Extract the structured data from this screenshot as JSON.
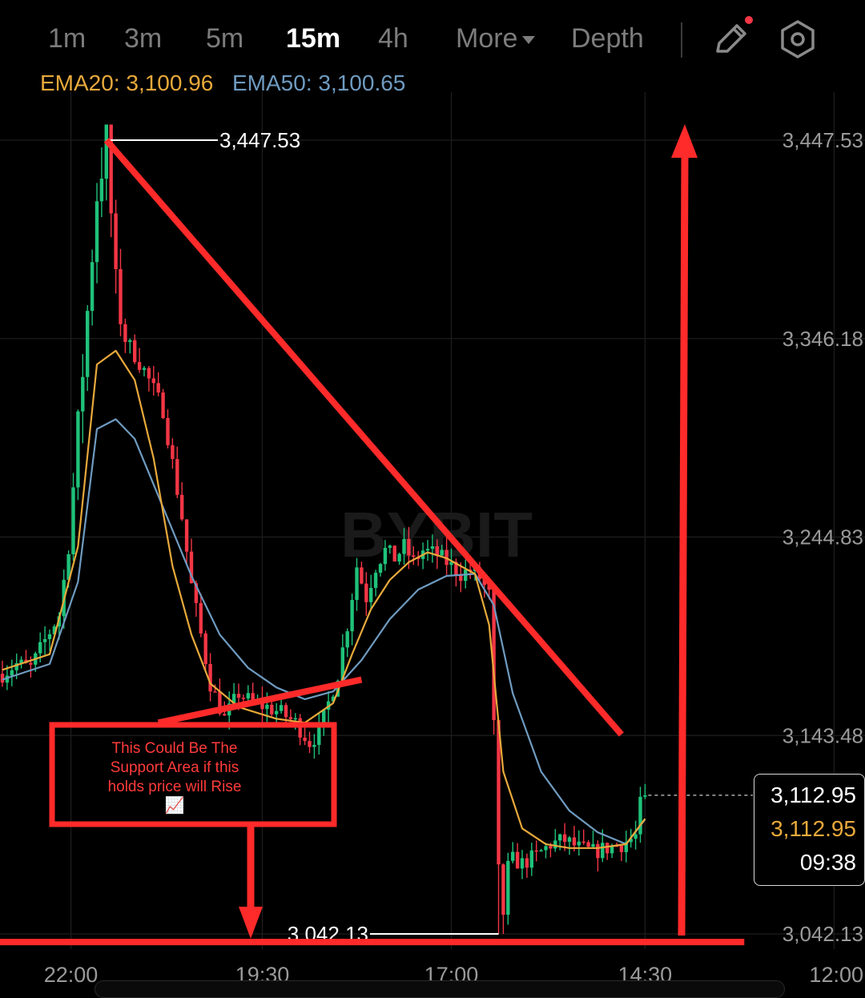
{
  "toolbar": {
    "timeframes": [
      "1m",
      "3m",
      "5m",
      "15m",
      "4h"
    ],
    "active": "15m",
    "more_label": "More",
    "depth_label": "Depth",
    "draw_icon": "pencil-icon",
    "settings_icon": "hexagon-settings-icon"
  },
  "indicators": {
    "ema20": "EMA20: 3,100.96",
    "ema50": "EMA50: 3,100.65",
    "ema20_color": "#e8a93b",
    "ema50_color": "#6f9bc0"
  },
  "watermark": "BYBIT",
  "price_box": {
    "last": "3,112.95",
    "mark": "3,112.95",
    "countdown": "09:38"
  },
  "annotation": {
    "line1": "This Could Be The",
    "line2": "Support Area if this",
    "line3": "holds price will Rise",
    "emoji": "📈"
  },
  "colors": {
    "up": "#1fc27a",
    "down": "#f23645",
    "annotation": "#ff2a2a",
    "background": "#000000"
  },
  "chart_data": {
    "type": "candlestick",
    "interval": "15m",
    "x_tick_labels": [
      "22:00",
      "19:30",
      "17:00",
      "14:30",
      "12:00"
    ],
    "y_tick_labels": [
      "3,447.53",
      "3,346.18",
      "3,244.83",
      "3,143.48",
      "3,042.13"
    ],
    "ylim": [
      3042.13,
      3447.53
    ],
    "high_marker": "3,447.53",
    "low_marker": "3,042.13",
    "high_value": 3447.53,
    "low_value": 3042.13,
    "last_price": 3112.95,
    "close_path": [
      [
        0,
        3175
      ],
      [
        3,
        3180
      ],
      [
        6,
        3178
      ],
      [
        9,
        3192
      ],
      [
        12,
        3205
      ],
      [
        14,
        3240
      ],
      [
        16,
        3300
      ],
      [
        18,
        3360
      ],
      [
        20,
        3420
      ],
      [
        22,
        3447.53
      ],
      [
        24,
        3372
      ],
      [
        26,
        3346
      ],
      [
        30,
        3330
      ],
      [
        34,
        3310
      ],
      [
        38,
        3255
      ],
      [
        40,
        3220
      ],
      [
        42,
        3195
      ],
      [
        44,
        3170
      ],
      [
        47,
        3152
      ],
      [
        50,
        3165
      ],
      [
        53,
        3160
      ],
      [
        56,
        3158
      ],
      [
        59,
        3155
      ],
      [
        62,
        3150
      ],
      [
        65,
        3140
      ],
      [
        67,
        3145
      ],
      [
        69,
        3160
      ],
      [
        71,
        3175
      ],
      [
        73,
        3200
      ],
      [
        75,
        3230
      ],
      [
        77,
        3214
      ],
      [
        79,
        3230
      ],
      [
        81,
        3238
      ],
      [
        83,
        3234
      ],
      [
        85,
        3240
      ],
      [
        87,
        3232
      ],
      [
        89,
        3238
      ],
      [
        92,
        3236
      ],
      [
        95,
        3230
      ],
      [
        97,
        3226
      ],
      [
        99,
        3228
      ],
      [
        101,
        3224
      ],
      [
        103,
        3215
      ],
      [
        104,
        3140
      ],
      [
        105,
        3065
      ],
      [
        106,
        3055
      ],
      [
        108,
        3080
      ],
      [
        110,
        3078
      ],
      [
        113,
        3082
      ],
      [
        116,
        3088
      ],
      [
        119,
        3090
      ],
      [
        122,
        3086
      ],
      [
        125,
        3084
      ],
      [
        128,
        3086
      ],
      [
        131,
        3088
      ],
      [
        134,
        3092
      ],
      [
        135,
        3108
      ],
      [
        136,
        3112.95
      ]
    ],
    "ema20_path": [
      [
        0,
        3177
      ],
      [
        10,
        3185
      ],
      [
        16,
        3240
      ],
      [
        20,
        3333
      ],
      [
        24,
        3340
      ],
      [
        28,
        3325
      ],
      [
        32,
        3285
      ],
      [
        36,
        3230
      ],
      [
        40,
        3195
      ],
      [
        44,
        3170
      ],
      [
        50,
        3158
      ],
      [
        58,
        3152
      ],
      [
        64,
        3150
      ],
      [
        70,
        3160
      ],
      [
        74,
        3185
      ],
      [
        78,
        3208
      ],
      [
        82,
        3223
      ],
      [
        86,
        3232
      ],
      [
        90,
        3237
      ],
      [
        94,
        3234
      ],
      [
        100,
        3226
      ],
      [
        103,
        3200
      ],
      [
        106,
        3125
      ],
      [
        110,
        3096
      ],
      [
        115,
        3088
      ],
      [
        120,
        3086
      ],
      [
        126,
        3086
      ],
      [
        132,
        3088
      ],
      [
        136,
        3100.96
      ]
    ],
    "ema50_path": [
      [
        0,
        3172
      ],
      [
        10,
        3180
      ],
      [
        16,
        3222
      ],
      [
        20,
        3300
      ],
      [
        24,
        3305
      ],
      [
        28,
        3295
      ],
      [
        34,
        3260
      ],
      [
        40,
        3225
      ],
      [
        46,
        3195
      ],
      [
        52,
        3178
      ],
      [
        58,
        3168
      ],
      [
        64,
        3162
      ],
      [
        70,
        3166
      ],
      [
        76,
        3182
      ],
      [
        82,
        3203
      ],
      [
        88,
        3218
      ],
      [
        94,
        3225
      ],
      [
        100,
        3226
      ],
      [
        104,
        3210
      ],
      [
        108,
        3165
      ],
      [
        114,
        3125
      ],
      [
        120,
        3105
      ],
      [
        126,
        3094
      ],
      [
        132,
        3088
      ],
      [
        136,
        3100.65
      ]
    ],
    "trendlines": [
      {
        "name": "descending-resistance",
        "from": [
          22,
          3447.53
        ],
        "to": [
          131,
          3144
        ]
      },
      {
        "name": "rising-support",
        "from": [
          33,
          3150
        ],
        "to": [
          76,
          3172
        ]
      },
      {
        "name": "support-baseline",
        "from": [
          -2,
          3038
        ],
        "to": [
          157,
          3038
        ]
      }
    ],
    "grid": true
  }
}
